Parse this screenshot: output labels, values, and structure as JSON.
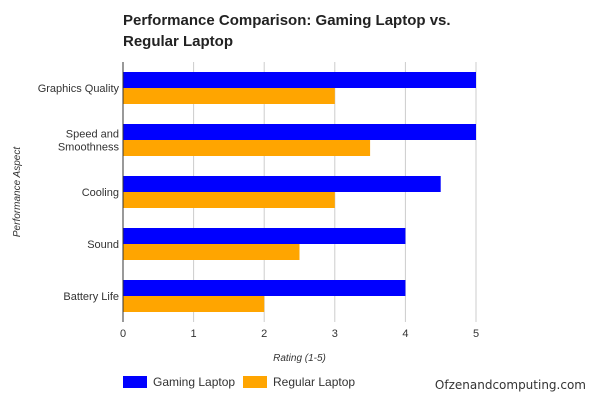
{
  "chart_data": {
    "type": "bar",
    "orientation": "horizontal",
    "title": "Performance Comparison: Gaming Laptop vs. Regular Laptop",
    "xlabel": "Rating (1-5)",
    "ylabel": "Performance Aspect",
    "xlim": [
      0,
      5
    ],
    "xticks": [
      "0",
      "1",
      "2",
      "3",
      "4",
      "5"
    ],
    "grid": true,
    "legend": "bottom-left",
    "categories": [
      [
        "Graphics Quality"
      ],
      [
        "Speed and",
        "Smoothness"
      ],
      [
        "Cooling"
      ],
      [
        "Sound"
      ],
      [
        "Battery Life"
      ]
    ],
    "series": [
      {
        "name": "Gaming Laptop",
        "color": "#0000ff",
        "values": [
          5,
          5,
          4.5,
          4,
          4
        ]
      },
      {
        "name": "Regular Laptop",
        "color": "#ffa500",
        "values": [
          3,
          3.5,
          3,
          2.5,
          2
        ]
      }
    ]
  },
  "watermark": "Ofzenandcomputing.com"
}
